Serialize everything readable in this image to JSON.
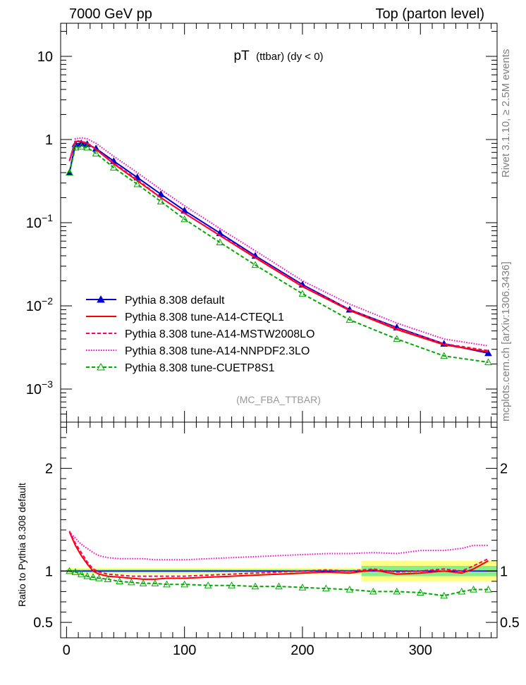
{
  "header": {
    "left": "7000 GeV pp",
    "right": "Top (parton level)"
  },
  "side_text": {
    "upper": "Rivet 3.1.10, ≥ 2.5M events",
    "lower": "mcplots.cern.ch [arXiv:1306.3436]"
  },
  "chart_data": [
    {
      "type": "line",
      "title_main": "pT",
      "title_rest": "(ttbar) (dy < 0)",
      "watermark": "(MC_FBA_TTBAR)",
      "yscale": "log",
      "xlim": [
        -5,
        365
      ],
      "ylim": [
        0.0004,
        25
      ],
      "yticks": [
        {
          "v": 10,
          "m": "10",
          "e": ""
        },
        {
          "v": 1,
          "m": "1",
          "e": ""
        },
        {
          "v": 0.1,
          "m": "10",
          "e": "−1"
        },
        {
          "v": 0.01,
          "m": "10",
          "e": "−2"
        },
        {
          "v": 0.001,
          "m": "10",
          "e": "−3"
        }
      ],
      "legend": {
        "position": "lower-left"
      },
      "series": [
        {
          "name": "Pythia 8.308 default",
          "color": "#0000cc",
          "marker": "filled-triangle",
          "line": "solid",
          "x": [
            2.5,
            7.5,
            12.5,
            17.5,
            25,
            40,
            60,
            80,
            100,
            130,
            160,
            200,
            240,
            280,
            320,
            357.5
          ],
          "y": [
            0.4,
            0.88,
            0.9,
            0.88,
            0.78,
            0.55,
            0.35,
            0.22,
            0.14,
            0.075,
            0.04,
            0.018,
            0.009,
            0.0055,
            0.0035,
            0.0027
          ]
        },
        {
          "name": "Pythia 8.308 tune-A14-CTEQL1",
          "color": "#ff0000",
          "marker": "none",
          "line": "solid",
          "x": [
            2.5,
            7.5,
            12.5,
            17.5,
            25,
            40,
            60,
            80,
            100,
            130,
            160,
            200,
            240,
            280,
            320,
            357.5
          ],
          "y": [
            0.55,
            0.95,
            0.94,
            0.9,
            0.76,
            0.51,
            0.32,
            0.2,
            0.13,
            0.07,
            0.038,
            0.017,
            0.0088,
            0.0052,
            0.0034,
            0.0028
          ]
        },
        {
          "name": "Pythia 8.308 tune-A14-MSTW2008LO",
          "color": "#ff0066",
          "marker": "none",
          "line": "dashed",
          "x": [
            2.5,
            7.5,
            12.5,
            17.5,
            25,
            40,
            60,
            80,
            100,
            130,
            160,
            200,
            240,
            280,
            320,
            357.5
          ],
          "y": [
            0.56,
            0.97,
            0.95,
            0.91,
            0.77,
            0.52,
            0.33,
            0.2,
            0.13,
            0.071,
            0.039,
            0.0175,
            0.009,
            0.0054,
            0.0035,
            0.0029
          ]
        },
        {
          "name": "Pythia 8.308 tune-A14-NNPDF2.3LO",
          "color": "#ff00cc",
          "marker": "none",
          "line": "dotted",
          "x": [
            2.5,
            7.5,
            12.5,
            17.5,
            25,
            40,
            60,
            80,
            100,
            130,
            160,
            200,
            240,
            280,
            320,
            357.5
          ],
          "y": [
            0.55,
            1.02,
            1.05,
            1.02,
            0.9,
            0.63,
            0.4,
            0.25,
            0.16,
            0.085,
            0.046,
            0.02,
            0.0105,
            0.0062,
            0.004,
            0.0033
          ]
        },
        {
          "name": "Pythia 8.308 tune-CUETP8S1",
          "color": "#00aa00",
          "marker": "open-triangle",
          "line": "dashed",
          "x": [
            2.5,
            7.5,
            12.5,
            17.5,
            25,
            40,
            60,
            80,
            100,
            130,
            160,
            200,
            240,
            280,
            320,
            357.5
          ],
          "y": [
            0.4,
            0.8,
            0.82,
            0.8,
            0.68,
            0.46,
            0.29,
            0.18,
            0.11,
            0.058,
            0.031,
            0.014,
            0.0068,
            0.004,
            0.0025,
            0.0021
          ]
        }
      ]
    },
    {
      "type": "line",
      "ylabel": "Ratio to Pythia 8.308 default",
      "xlim": [
        -5,
        365
      ],
      "ylim": [
        0.35,
        2.45
      ],
      "xticks": [
        0,
        100,
        200,
        300
      ],
      "yticks": [
        0.5,
        1,
        2
      ],
      "band": [
        {
          "from": 0,
          "to": 250,
          "lo": 0.97,
          "hi": 1.03
        },
        {
          "from": 250,
          "to": 365,
          "lo": 0.9,
          "hi": 1.1
        }
      ],
      "series": [
        {
          "name": "Pythia 8.308 tune-A14-CTEQL1",
          "color": "#ff0000",
          "line": "solid",
          "x": [
            2.5,
            7.5,
            12.5,
            17.5,
            22.5,
            27.5,
            35,
            45,
            55,
            65,
            75,
            85,
            100,
            120,
            140,
            160,
            180,
            200,
            220,
            240,
            260,
            280,
            300,
            320,
            335,
            345,
            357.5
          ],
          "y": [
            1.38,
            1.25,
            1.15,
            1.07,
            1.0,
            0.97,
            0.95,
            0.94,
            0.93,
            0.92,
            0.92,
            0.93,
            0.93,
            0.94,
            0.95,
            0.96,
            0.97,
            0.98,
            0.99,
            0.98,
            1.01,
            0.97,
            0.98,
            1.0,
            0.98,
            1.02,
            1.1
          ]
        },
        {
          "name": "Pythia 8.308 tune-A14-MSTW2008LO",
          "color": "#ff0066",
          "line": "dashed",
          "x": [
            2.5,
            7.5,
            12.5,
            17.5,
            22.5,
            27.5,
            35,
            45,
            55,
            65,
            75,
            85,
            100,
            120,
            140,
            160,
            180,
            200,
            220,
            240,
            260,
            280,
            300,
            320,
            335,
            345,
            357.5
          ],
          "y": [
            1.39,
            1.27,
            1.18,
            1.09,
            1.02,
            0.99,
            0.97,
            0.96,
            0.95,
            0.95,
            0.95,
            0.95,
            0.95,
            0.96,
            0.97,
            0.98,
            0.99,
            1.0,
            1.01,
            1.0,
            1.02,
            0.99,
            1.0,
            1.02,
            1.0,
            1.05,
            1.12
          ]
        },
        {
          "name": "Pythia 8.308 tune-A14-NNPDF2.3LO",
          "color": "#ff00cc",
          "line": "dotted",
          "x": [
            2.5,
            7.5,
            12.5,
            17.5,
            22.5,
            27.5,
            35,
            45,
            55,
            65,
            75,
            85,
            100,
            120,
            140,
            160,
            180,
            200,
            220,
            240,
            260,
            280,
            300,
            320,
            335,
            345,
            357.5
          ],
          "y": [
            1.38,
            1.32,
            1.26,
            1.22,
            1.18,
            1.15,
            1.13,
            1.12,
            1.12,
            1.12,
            1.11,
            1.11,
            1.11,
            1.12,
            1.13,
            1.14,
            1.15,
            1.16,
            1.17,
            1.17,
            1.18,
            1.17,
            1.2,
            1.2,
            1.22,
            1.25,
            1.25
          ]
        },
        {
          "name": "Pythia 8.308 tune-CUETP8S1",
          "color": "#00aa00",
          "line": "dashed",
          "marker": "open-triangle",
          "x": [
            2.5,
            7.5,
            12.5,
            17.5,
            22.5,
            27.5,
            35,
            45,
            55,
            65,
            75,
            85,
            100,
            120,
            140,
            160,
            180,
            200,
            220,
            240,
            260,
            280,
            300,
            320,
            335,
            345,
            357.5
          ],
          "y": [
            1.0,
            0.99,
            0.97,
            0.95,
            0.94,
            0.93,
            0.92,
            0.9,
            0.89,
            0.88,
            0.88,
            0.87,
            0.87,
            0.86,
            0.86,
            0.85,
            0.85,
            0.84,
            0.83,
            0.82,
            0.8,
            0.8,
            0.79,
            0.76,
            0.8,
            0.82,
            0.82
          ]
        }
      ]
    }
  ]
}
